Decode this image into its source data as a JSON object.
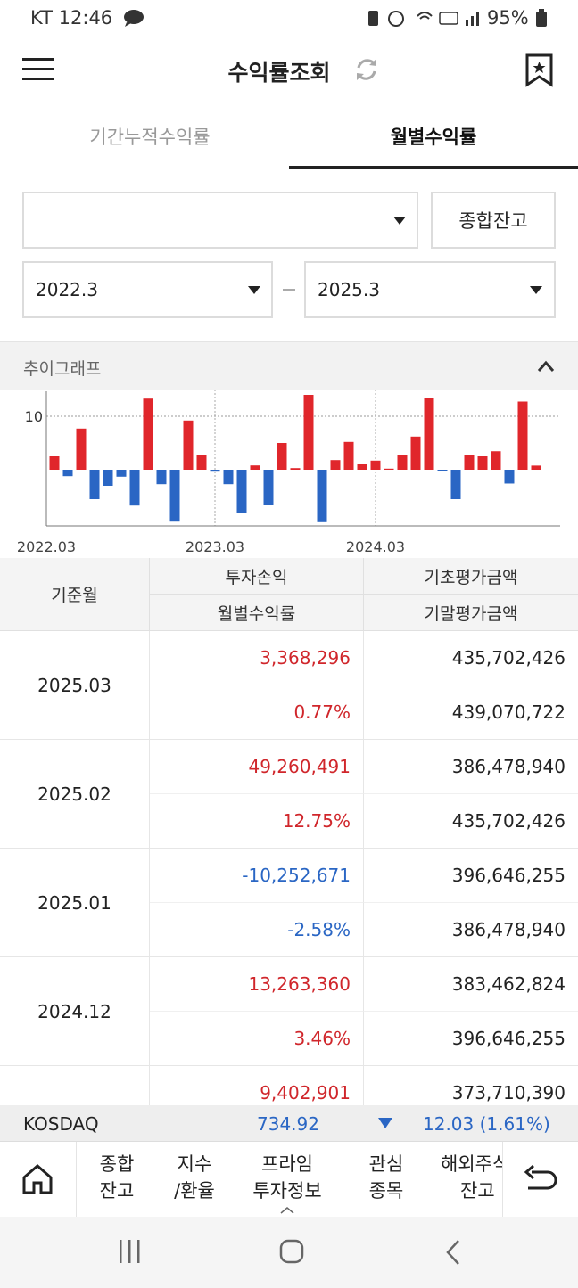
{
  "status_bar": {
    "left": "KT 12:46",
    "battery": "95%"
  },
  "header": {
    "title": "수익률조회"
  },
  "tabs": [
    "기간누적수익률",
    "월별수익률"
  ],
  "filters": {
    "button": "종합잔고",
    "start": "2022.3",
    "end": "2025.3"
  },
  "section_title": "추이그래프",
  "chart_data": {
    "type": "bar",
    "categories": [
      "2022.03",
      null,
      null,
      null,
      null,
      null,
      null,
      null,
      null,
      null,
      null,
      null,
      "2023.03",
      null,
      null,
      null,
      null,
      null,
      null,
      null,
      null,
      null,
      null,
      null,
      "2024.03",
      null,
      null,
      null,
      null,
      null,
      null,
      null,
      null,
      null,
      null,
      null,
      null
    ],
    "values": [
      2.5,
      -1.2,
      7.7,
      -5.5,
      -3,
      -1.3,
      -6.7,
      13.3,
      -2.7,
      -9.7,
      9.2,
      2.8,
      -0.2,
      -2.7,
      -8,
      0.8,
      -6.5,
      5,
      0.3,
      14,
      -9.8,
      1.8,
      5.2,
      1,
      1.7,
      0.2,
      2.7,
      6.2,
      13.5,
      -0.1,
      -5.5,
      2.8,
      2.5,
      3.46,
      -2.58,
      12.75,
      0.77
    ],
    "positive_color": "#e0262b",
    "negative_color": "#2a66c4",
    "ylim": [
      -10.5,
      15
    ],
    "yticks": [
      10
    ],
    "grid": true
  },
  "table": {
    "headers": {
      "month": "기준월",
      "pnl": "투자손익",
      "rate": "월별수익률",
      "begin": "기초평가금액",
      "end": "기말평가금액"
    },
    "rows": [
      {
        "month": "2025.03",
        "pnl": "3,368,296",
        "rate": "0.77%",
        "begin": "435,702,426",
        "end": "439,070,722"
      },
      {
        "month": "2025.02",
        "pnl": "49,260,491",
        "rate": "12.75%",
        "begin": "386,478,940",
        "end": "435,702,426"
      },
      {
        "month": "2025.01",
        "pnl": "-10,252,671",
        "rate": "-2.58%",
        "begin": "396,646,255",
        "end": "386,478,940"
      },
      {
        "month": "2024.12",
        "pnl": "13,263,360",
        "rate": "3.46%",
        "begin": "383,462,824",
        "end": "396,646,255"
      },
      {
        "pnl": "9,402,901",
        "begin": "373,710,390"
      }
    ]
  },
  "ticker": {
    "name": "KOSDAQ",
    "value": "734.92",
    "change": "12.03 (1.61%)"
  },
  "nav": [
    [
      "종합",
      "잔고"
    ],
    [
      "지수",
      "/환율"
    ],
    [
      "프라임",
      "투자정보"
    ],
    [
      "관심",
      "종목"
    ],
    [
      "해외주식",
      "잔고"
    ]
  ]
}
